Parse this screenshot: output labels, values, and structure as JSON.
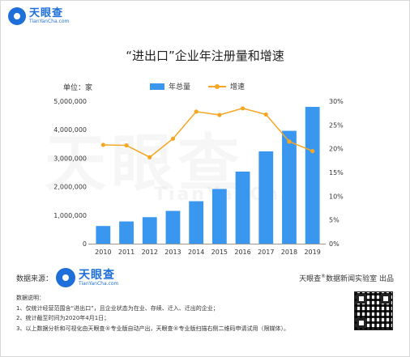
{
  "brand": {
    "name": "天眼查",
    "domain": "TianYanCha.com",
    "watermark_main": "天眼查",
    "watermark_sub": "TianYanCha"
  },
  "title": "“进出口”企业年注册量和增速",
  "unit_label": "单位：家",
  "legend": {
    "bar": "年总量",
    "line": "增速"
  },
  "colors": {
    "bar": "#3a97f0",
    "line": "#f5a623",
    "brand": "#1e6fd9"
  },
  "chart_data": {
    "type": "bar",
    "title": "“进出口”企业年注册量和增速",
    "categories": [
      "2010",
      "2011",
      "2012",
      "2013",
      "2014",
      "2015",
      "2016",
      "2017",
      "2018",
      "2019"
    ],
    "series": [
      {
        "name": "年总量",
        "type": "bar",
        "axis": "left",
        "values": [
          620000,
          780000,
          930000,
          1150000,
          1490000,
          1920000,
          2530000,
          3240000,
          3960000,
          4800000
        ]
      },
      {
        "name": "增速",
        "type": "line",
        "axis": "right",
        "values": [
          20.8,
          20.7,
          18.2,
          22.1,
          27.8,
          27.1,
          28.5,
          27.2,
          21.5,
          19.5
        ]
      }
    ],
    "y_left": {
      "range": [
        0,
        5000000
      ],
      "ticks": [
        "0",
        "1,000,000",
        "2,000,000",
        "3,000,000",
        "4,000,000",
        "5,000,000"
      ]
    },
    "y_right": {
      "range": [
        0,
        30
      ],
      "ticks": [
        "0%",
        "5%",
        "10%",
        "15%",
        "20%",
        "25%",
        "30%"
      ]
    },
    "legend_position": "top",
    "grid": false
  },
  "source": {
    "label": "数据来源："
  },
  "producer": {
    "prefix": "天眼查",
    "mark": "®",
    "suffix": "数据新闻实验室 出品"
  },
  "notes": {
    "heading": "数据说明：",
    "items": [
      "1、仅统计经营范围含“进出口”，且企业状态为在业、存续、迁入、迁出的企业；",
      "2、统计截至时间为2020年4月1日；",
      "3、以上数据分析和可视化由天眼查®专业版自动产出，天眼查®专业版扫描右侧二维码申请试用（限媒体）。"
    ]
  }
}
